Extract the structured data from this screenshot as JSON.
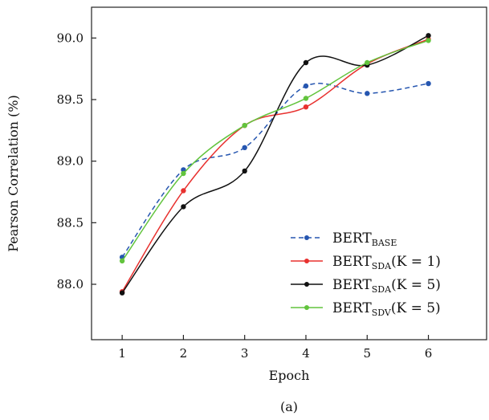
{
  "chart_data": {
    "type": "line",
    "xlabel": "Epoch",
    "ylabel": "Pearson Correlation (%)",
    "caption": "(a)",
    "x": [
      1,
      2,
      3,
      4,
      5,
      6
    ],
    "xlim": [
      0.5,
      6.95
    ],
    "ylim": [
      87.55,
      90.25
    ],
    "yticks": [
      88.0,
      88.5,
      89.0,
      89.5,
      90.0
    ],
    "ytick_labels": [
      "88.0",
      "88.5",
      "89.0",
      "89.5",
      "90.0"
    ],
    "xtick_labels": [
      "1",
      "2",
      "3",
      "4",
      "5",
      "6"
    ],
    "grid": false,
    "legend_position": "lower-right",
    "series": [
      {
        "name": "BERT",
        "name_sub": "BASE",
        "name_suffix": "",
        "color": "#2656b0",
        "dashed": true,
        "values": [
          88.22,
          88.93,
          89.11,
          89.61,
          89.55,
          89.63
        ]
      },
      {
        "name": "BERT",
        "name_sub": "SDA",
        "name_suffix": "(K = 1)",
        "color": "#e8312f",
        "dashed": false,
        "values": [
          87.94,
          88.76,
          89.29,
          89.44,
          89.79,
          89.99
        ]
      },
      {
        "name": "BERT",
        "name_sub": "SDA",
        "name_suffix": "(K = 5)",
        "color": "#111111",
        "dashed": false,
        "values": [
          87.93,
          88.63,
          88.92,
          89.8,
          89.78,
          90.02
        ]
      },
      {
        "name": "BERT",
        "name_sub": "SDV",
        "name_suffix": "(K = 5)",
        "color": "#62c43d",
        "dashed": false,
        "values": [
          88.19,
          88.9,
          89.29,
          89.51,
          89.8,
          89.98
        ]
      }
    ]
  }
}
